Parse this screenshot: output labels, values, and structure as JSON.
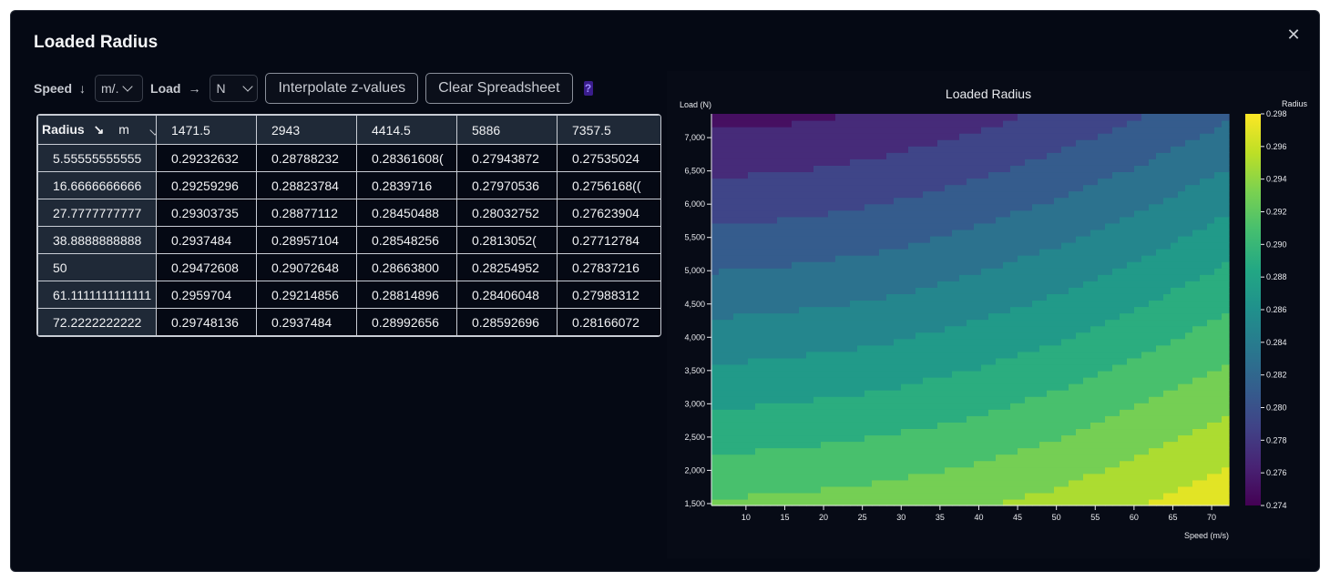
{
  "dialog": {
    "title": "Loaded Radius",
    "close_icon": "close-icon"
  },
  "toolbar": {
    "speed_label": "Speed",
    "speed_unit": "m/.",
    "load_label": "Load",
    "load_unit": "N",
    "interpolate_label": "Interpolate z-values",
    "clear_label": "Clear Spreadsheet",
    "help_label": "?"
  },
  "table": {
    "corner_label": "Radius",
    "corner_unit": "m",
    "columns": [
      "1471.5",
      "2943",
      "4414.5",
      "5886",
      "7357.5"
    ],
    "rows": [
      {
        "head": "5.55555555555",
        "values": [
          "0.29232632",
          "0.28788232",
          "0.28361608(",
          "0.27943872",
          "0.27535024"
        ]
      },
      {
        "head": "16.6666666666",
        "values": [
          "0.29259296",
          "0.28823784",
          "0.2839716",
          "0.27970536",
          "0.2756168(("
        ]
      },
      {
        "head": "27.7777777777",
        "values": [
          "0.29303735",
          "0.28877112",
          "0.28450488",
          "0.28032752",
          "0.27623904"
        ]
      },
      {
        "head": "38.8888888888",
        "values": [
          "0.2937484",
          "0.28957104",
          "0.28548256",
          "0.2813052(",
          "0.27712784"
        ]
      },
      {
        "head": "50",
        "values": [
          "0.29472608",
          "0.29072648",
          "0.28663800",
          "0.28254952",
          "0.27837216"
        ]
      },
      {
        "head": "61.1111111111111",
        "values": [
          "0.2959704",
          "0.29214856",
          "0.28814896",
          "0.28406048",
          "0.27988312"
        ]
      },
      {
        "head": "72.2222222222",
        "values": [
          "0.29748136",
          "0.2937484",
          "0.28992656",
          "0.28592696",
          "0.28166072"
        ]
      }
    ]
  },
  "chart_data": {
    "type": "contour",
    "title": "Loaded Radius",
    "xlabel": "Speed (m/s)",
    "ylabel": "Load (N)",
    "colorbar_label": "Radius",
    "x_ticks": [
      10,
      15,
      20,
      25,
      30,
      35,
      40,
      45,
      50,
      55,
      60,
      65,
      70
    ],
    "y_ticks": [
      "1,500",
      "2,000",
      "2,500",
      "3,000",
      "3,500",
      "4,000",
      "4,500",
      "5,000",
      "5,500",
      "6,000",
      "6,500",
      "7,000"
    ],
    "y_tick_values": [
      1500,
      2000,
      2500,
      3000,
      3500,
      4000,
      4500,
      5000,
      5500,
      6000,
      6500,
      7000
    ],
    "colorbar_ticks": [
      "0.298",
      "0.296",
      "0.294",
      "0.292",
      "0.290",
      "0.288",
      "0.286",
      "0.284",
      "0.282",
      "0.280",
      "0.278",
      "0.276",
      "0.274"
    ],
    "colorbar_tick_values": [
      0.298,
      0.296,
      0.294,
      0.292,
      0.29,
      0.288,
      0.286,
      0.284,
      0.282,
      0.28,
      0.278,
      0.276,
      0.274
    ],
    "xlim": [
      5.5556,
      72.2222
    ],
    "ylim": [
      1471.5,
      7357.5
    ],
    "zlim": [
      0.274,
      0.298
    ],
    "colormap": "viridis",
    "x": [
      5.55555555555,
      16.6666666666,
      27.7777777777,
      38.8888888888,
      50,
      61.1111111111111,
      72.2222222222
    ],
    "y": [
      1471.5,
      2943,
      4414.5,
      5886,
      7357.5
    ],
    "z": [
      [
        0.29232632,
        0.28788232,
        0.28361608,
        0.27943872,
        0.27535024
      ],
      [
        0.29259296,
        0.28823784,
        0.2839716,
        0.27970536,
        0.2756168
      ],
      [
        0.29303735,
        0.28877112,
        0.28450488,
        0.28032752,
        0.27623904
      ],
      [
        0.2937484,
        0.28957104,
        0.28548256,
        0.2813052,
        0.27712784
      ],
      [
        0.29472608,
        0.29072648,
        0.286638,
        0.28254952,
        0.27837216
      ],
      [
        0.2959704,
        0.29214856,
        0.28814896,
        0.28406048,
        0.27988312
      ],
      [
        0.29748136,
        0.2937484,
        0.28992656,
        0.28592696,
        0.28166072
      ]
    ]
  }
}
